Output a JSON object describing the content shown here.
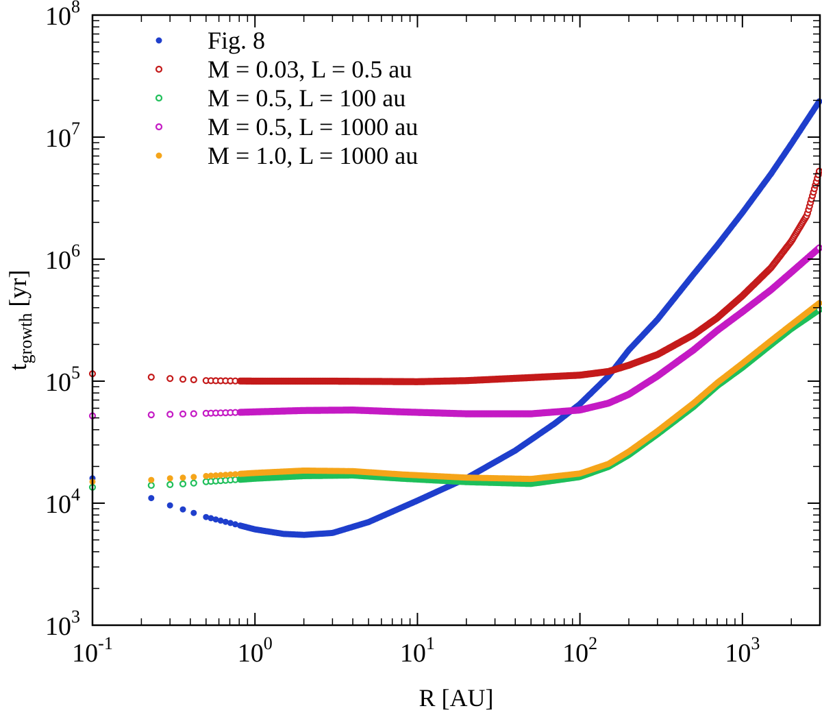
{
  "chart_data": {
    "type": "scatter",
    "title": "",
    "xlabel": "R [AU]",
    "ylabel": {
      "main": "t",
      "sub": "growth",
      "rest": " [yr]"
    },
    "x_scale": "log",
    "y_scale": "log",
    "xlim": [
      0.1,
      3000
    ],
    "ylim": [
      1000,
      100000000
    ],
    "grid": false,
    "legend_position": "top-left",
    "x_ticks": [
      {
        "value": 0.1,
        "base": "10",
        "exp": "-1"
      },
      {
        "value": 1,
        "base": "10",
        "exp": "0"
      },
      {
        "value": 10,
        "base": "10",
        "exp": "1"
      },
      {
        "value": 100,
        "base": "10",
        "exp": "2"
      },
      {
        "value": 1000,
        "base": "10",
        "exp": "3"
      }
    ],
    "y_ticks": [
      {
        "value": 1000,
        "base": "10",
        "exp": "3"
      },
      {
        "value": 10000,
        "base": "10",
        "exp": "4"
      },
      {
        "value": 100000,
        "base": "10",
        "exp": "5"
      },
      {
        "value": 1000000,
        "base": "10",
        "exp": "6"
      },
      {
        "value": 10000000,
        "base": "10",
        "exp": "7"
      },
      {
        "value": 100000000,
        "base": "10",
        "exp": "8"
      }
    ],
    "series": [
      {
        "name": "Fig. 8",
        "color": "#1f3fcc",
        "marker": "filled",
        "points": [
          [
            0.1,
            16000
          ],
          [
            0.23,
            11000
          ],
          [
            0.3,
            9600
          ],
          [
            0.4,
            8500
          ],
          [
            0.5,
            7700
          ],
          [
            0.7,
            6900
          ],
          [
            1.0,
            6100
          ],
          [
            1.5,
            5600
          ],
          [
            2.0,
            5500
          ],
          [
            3.0,
            5700
          ],
          [
            5.0,
            7000
          ],
          [
            10,
            10500
          ],
          [
            20,
            16000
          ],
          [
            40,
            27000
          ],
          [
            70,
            45000
          ],
          [
            100,
            65000
          ],
          [
            150,
            110000
          ],
          [
            200,
            180000
          ],
          [
            300,
            320000
          ],
          [
            500,
            750000
          ],
          [
            700,
            1300000
          ],
          [
            1000,
            2400000
          ],
          [
            1500,
            5000000
          ],
          [
            2000,
            8800000
          ],
          [
            3000,
            20000000
          ]
        ]
      },
      {
        "name": "M = 0.03, L = 0.5 au",
        "color": "#c41a1a",
        "marker": "open",
        "points": [
          [
            0.1,
            115000
          ],
          [
            0.23,
            108000
          ],
          [
            0.3,
            105000
          ],
          [
            0.4,
            103000
          ],
          [
            0.5,
            101000
          ],
          [
            1.0,
            100000
          ],
          [
            3.0,
            100000
          ],
          [
            10,
            99000
          ],
          [
            20,
            101000
          ],
          [
            50,
            107000
          ],
          [
            100,
            112000
          ],
          [
            150,
            120000
          ],
          [
            200,
            135000
          ],
          [
            300,
            165000
          ],
          [
            500,
            240000
          ],
          [
            700,
            330000
          ],
          [
            1000,
            500000
          ],
          [
            1500,
            850000
          ],
          [
            2000,
            1400000
          ],
          [
            2500,
            2300000
          ],
          [
            3000,
            5500000
          ]
        ]
      },
      {
        "name": "M = 0.5, L = 100 au",
        "color": "#1fbf5a",
        "marker": "open",
        "points": [
          [
            0.1,
            13500
          ],
          [
            0.23,
            14000
          ],
          [
            0.3,
            14200
          ],
          [
            0.4,
            14500
          ],
          [
            0.5,
            15000
          ],
          [
            1.0,
            16000
          ],
          [
            2.0,
            16800
          ],
          [
            4.0,
            17000
          ],
          [
            8.0,
            16000
          ],
          [
            20,
            15000
          ],
          [
            50,
            14500
          ],
          [
            100,
            16500
          ],
          [
            150,
            20000
          ],
          [
            200,
            25000
          ],
          [
            300,
            37000
          ],
          [
            500,
            62000
          ],
          [
            700,
            92000
          ],
          [
            1000,
            130000
          ],
          [
            1500,
            200000
          ],
          [
            2000,
            270000
          ],
          [
            3000,
            390000
          ]
        ]
      },
      {
        "name": "M = 0.5, L = 1000 au",
        "color": "#c41ac4",
        "marker": "open",
        "points": [
          [
            0.1,
            52000
          ],
          [
            0.23,
            53000
          ],
          [
            0.3,
            53500
          ],
          [
            0.4,
            54000
          ],
          [
            0.5,
            54500
          ],
          [
            1.0,
            56000
          ],
          [
            2.0,
            57500
          ],
          [
            4.0,
            58000
          ],
          [
            8.0,
            56000
          ],
          [
            20,
            54000
          ],
          [
            50,
            54000
          ],
          [
            100,
            58000
          ],
          [
            150,
            66000
          ],
          [
            200,
            78000
          ],
          [
            300,
            110000
          ],
          [
            500,
            180000
          ],
          [
            700,
            260000
          ],
          [
            1000,
            370000
          ],
          [
            1500,
            560000
          ],
          [
            2000,
            780000
          ],
          [
            3000,
            1250000
          ]
        ]
      },
      {
        "name": "M = 1.0, L = 1000 au",
        "color": "#f5a51a",
        "marker": "filled",
        "points": [
          [
            0.1,
            15000
          ],
          [
            0.23,
            15500
          ],
          [
            0.3,
            16000
          ],
          [
            0.4,
            16300
          ],
          [
            0.5,
            16700
          ],
          [
            1.0,
            17700
          ],
          [
            2.0,
            18500
          ],
          [
            4.0,
            18300
          ],
          [
            8.0,
            17200
          ],
          [
            20,
            16200
          ],
          [
            50,
            15800
          ],
          [
            100,
            17500
          ],
          [
            150,
            21000
          ],
          [
            200,
            26500
          ],
          [
            300,
            39000
          ],
          [
            500,
            66000
          ],
          [
            700,
            97000
          ],
          [
            1000,
            140000
          ],
          [
            1500,
            215000
          ],
          [
            2000,
            290000
          ],
          [
            3000,
            440000
          ]
        ]
      }
    ]
  }
}
